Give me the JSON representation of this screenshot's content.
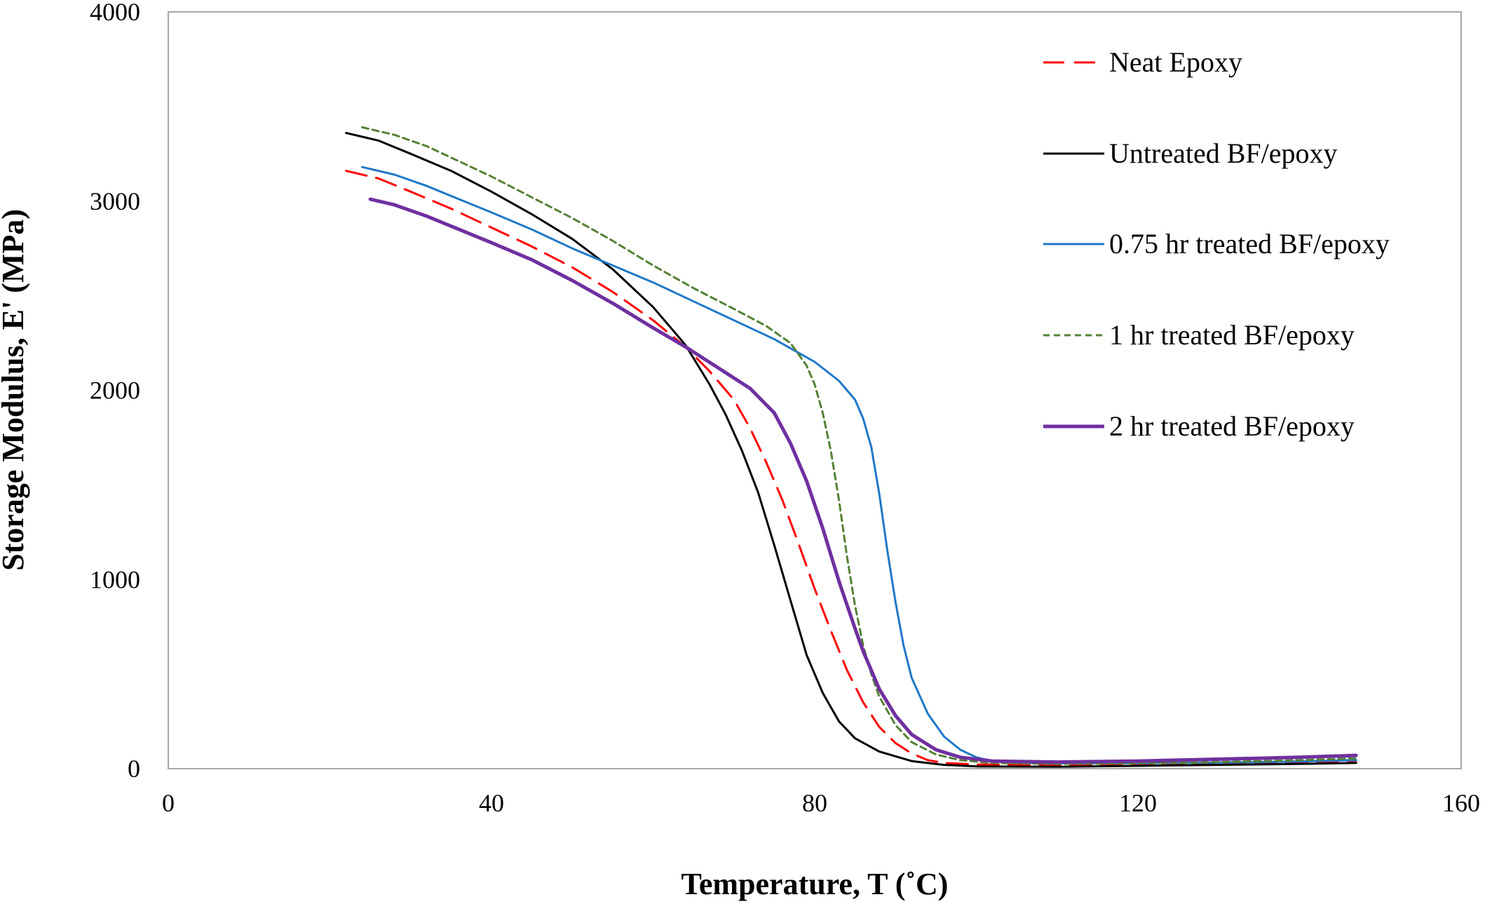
{
  "chart_data": {
    "type": "line",
    "title": "",
    "xlabel": "Temperature,  T (˚C)",
    "ylabel": "Storage  Modulus,  E' (MPa)",
    "xlim": [
      0,
      160
    ],
    "ylim": [
      0,
      4000
    ],
    "xticks": [
      0,
      40,
      80,
      120,
      160
    ],
    "yticks": [
      0,
      1000,
      2000,
      3000,
      4000
    ],
    "x_tick_labels": [
      "0",
      "40",
      "80",
      "120",
      "160"
    ],
    "y_tick_labels": [
      "0",
      "1000",
      "2000",
      "3000",
      "4000"
    ],
    "grid": false,
    "legend_position": "top-right",
    "series": [
      {
        "name": "Neat Epoxy",
        "color": "#ff0000",
        "style": "dashed",
        "width": 3,
        "points": [
          [
            22,
            3160
          ],
          [
            26,
            3120
          ],
          [
            30,
            3050
          ],
          [
            35,
            2960
          ],
          [
            40,
            2860
          ],
          [
            45,
            2760
          ],
          [
            50,
            2650
          ],
          [
            55,
            2520
          ],
          [
            60,
            2370
          ],
          [
            64,
            2230
          ],
          [
            67,
            2100
          ],
          [
            70,
            1950
          ],
          [
            72,
            1800
          ],
          [
            74,
            1620
          ],
          [
            76,
            1420
          ],
          [
            78,
            1190
          ],
          [
            80,
            950
          ],
          [
            82,
            730
          ],
          [
            84,
            520
          ],
          [
            86,
            350
          ],
          [
            88,
            220
          ],
          [
            90,
            135
          ],
          [
            92,
            80
          ],
          [
            94,
            45
          ],
          [
            96,
            30
          ],
          [
            100,
            22
          ],
          [
            110,
            20
          ],
          [
            120,
            22
          ],
          [
            130,
            25
          ],
          [
            140,
            30
          ],
          [
            147,
            35
          ]
        ]
      },
      {
        "name": "Untreated BF/epoxy",
        "color": "#000000",
        "style": "solid",
        "width": 3,
        "points": [
          [
            22,
            3360
          ],
          [
            26,
            3320
          ],
          [
            30,
            3250
          ],
          [
            35,
            3160
          ],
          [
            40,
            3050
          ],
          [
            45,
            2930
          ],
          [
            50,
            2800
          ],
          [
            55,
            2640
          ],
          [
            60,
            2440
          ],
          [
            64,
            2240
          ],
          [
            67,
            2030
          ],
          [
            69,
            1870
          ],
          [
            71,
            1680
          ],
          [
            73,
            1460
          ],
          [
            75,
            1180
          ],
          [
            77,
            890
          ],
          [
            79,
            600
          ],
          [
            81,
            400
          ],
          [
            83,
            250
          ],
          [
            85,
            160
          ],
          [
            88,
            90
          ],
          [
            92,
            40
          ],
          [
            96,
            20
          ],
          [
            100,
            12
          ],
          [
            110,
            10
          ],
          [
            120,
            15
          ],
          [
            130,
            20
          ],
          [
            140,
            25
          ],
          [
            147,
            30
          ]
        ]
      },
      {
        "name": "0.75 hr treated BF/epoxy",
        "color": "#1f78c8",
        "style": "solid",
        "width": 3,
        "points": [
          [
            24,
            3180
          ],
          [
            28,
            3140
          ],
          [
            32,
            3080
          ],
          [
            36,
            3010
          ],
          [
            40,
            2940
          ],
          [
            45,
            2850
          ],
          [
            50,
            2750
          ],
          [
            55,
            2660
          ],
          [
            60,
            2570
          ],
          [
            65,
            2470
          ],
          [
            70,
            2370
          ],
          [
            75,
            2270
          ],
          [
            80,
            2150
          ],
          [
            83,
            2050
          ],
          [
            85,
            1950
          ],
          [
            86,
            1850
          ],
          [
            87,
            1700
          ],
          [
            88,
            1450
          ],
          [
            89,
            1150
          ],
          [
            90,
            880
          ],
          [
            91,
            650
          ],
          [
            92,
            480
          ],
          [
            94,
            290
          ],
          [
            96,
            170
          ],
          [
            98,
            100
          ],
          [
            100,
            60
          ],
          [
            102,
            40
          ],
          [
            106,
            30
          ],
          [
            112,
            28
          ],
          [
            120,
            28
          ],
          [
            130,
            32
          ],
          [
            140,
            38
          ],
          [
            147,
            45
          ]
        ]
      },
      {
        "name": "1 hr treated BF/epoxy",
        "color": "#548235",
        "style": "dotted",
        "width": 3,
        "points": [
          [
            24,
            3390
          ],
          [
            28,
            3350
          ],
          [
            32,
            3290
          ],
          [
            36,
            3210
          ],
          [
            40,
            3130
          ],
          [
            45,
            3020
          ],
          [
            50,
            2910
          ],
          [
            55,
            2790
          ],
          [
            60,
            2660
          ],
          [
            65,
            2540
          ],
          [
            70,
            2430
          ],
          [
            74,
            2340
          ],
          [
            77,
            2250
          ],
          [
            79,
            2130
          ],
          [
            80,
            2030
          ],
          [
            81,
            1880
          ],
          [
            82,
            1680
          ],
          [
            83,
            1420
          ],
          [
            84,
            1120
          ],
          [
            85,
            860
          ],
          [
            86,
            650
          ],
          [
            87,
            500
          ],
          [
            88,
            380
          ],
          [
            90,
            230
          ],
          [
            92,
            140
          ],
          [
            95,
            75
          ],
          [
            98,
            45
          ],
          [
            102,
            30
          ],
          [
            110,
            25
          ],
          [
            120,
            28
          ],
          [
            130,
            35
          ],
          [
            140,
            45
          ],
          [
            147,
            55
          ]
        ]
      },
      {
        "name": "2 hr treated BF/epoxy",
        "color": "#7030a0",
        "style": "solid",
        "width": 5,
        "points": [
          [
            25,
            3010
          ],
          [
            28,
            2980
          ],
          [
            32,
            2920
          ],
          [
            36,
            2850
          ],
          [
            40,
            2780
          ],
          [
            45,
            2690
          ],
          [
            50,
            2580
          ],
          [
            55,
            2460
          ],
          [
            60,
            2330
          ],
          [
            64,
            2230
          ],
          [
            68,
            2120
          ],
          [
            72,
            2010
          ],
          [
            75,
            1880
          ],
          [
            77,
            1720
          ],
          [
            79,
            1520
          ],
          [
            81,
            1270
          ],
          [
            83,
            990
          ],
          [
            85,
            740
          ],
          [
            86,
            620
          ],
          [
            87,
            520
          ],
          [
            88,
            420
          ],
          [
            90,
            280
          ],
          [
            92,
            180
          ],
          [
            95,
            100
          ],
          [
            98,
            60
          ],
          [
            102,
            40
          ],
          [
            110,
            35
          ],
          [
            120,
            40
          ],
          [
            130,
            50
          ],
          [
            140,
            60
          ],
          [
            147,
            70
          ]
        ]
      }
    ]
  }
}
